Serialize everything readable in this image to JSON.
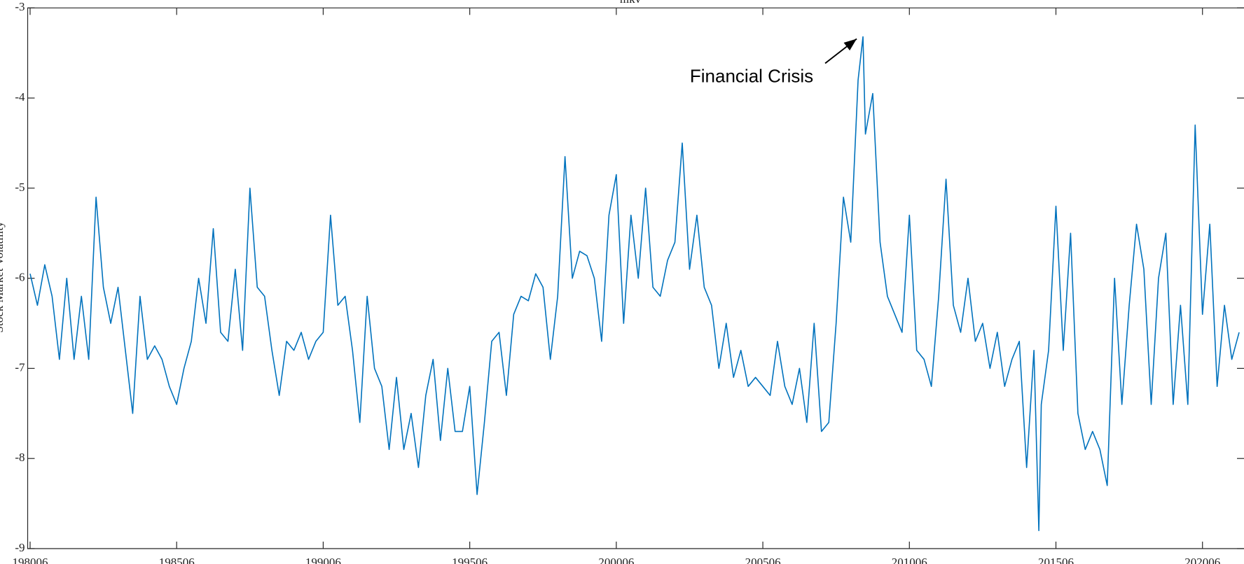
{
  "chart_data": {
    "type": "line",
    "title": "mkv",
    "ylabel": "Stock Market Volatility",
    "annotations": [
      {
        "text": "Financial Crisis"
      }
    ],
    "xlim": [
      "1980-05",
      "2021-11"
    ],
    "xticks": [
      {
        "value": "1980-06",
        "label": "198006"
      },
      {
        "value": "1985-06",
        "label": "198506"
      },
      {
        "value": "1990-06",
        "label": "199006"
      },
      {
        "value": "1995-06",
        "label": "199506"
      },
      {
        "value": "2000-06",
        "label": "200006"
      },
      {
        "value": "2005-06",
        "label": "200506"
      },
      {
        "value": "2010-06",
        "label": "201006"
      },
      {
        "value": "2015-06",
        "label": "201506"
      },
      {
        "value": "2020-06",
        "label": "202006"
      }
    ],
    "ylim": [
      -9,
      -3
    ],
    "yticks": [
      -9,
      -8,
      -7,
      -6,
      -5,
      -4,
      -3
    ],
    "grid": false,
    "x": [
      "1980-06",
      "1980-09",
      "1980-12",
      "1981-03",
      "1981-06",
      "1981-09",
      "1981-12",
      "1982-03",
      "1982-06",
      "1982-09",
      "1982-12",
      "1983-03",
      "1983-06",
      "1983-09",
      "1983-12",
      "1984-03",
      "1984-06",
      "1984-09",
      "1984-12",
      "1985-03",
      "1985-06",
      "1985-09",
      "1985-12",
      "1986-03",
      "1986-06",
      "1986-09",
      "1986-12",
      "1987-03",
      "1987-06",
      "1987-09",
      "1987-12",
      "1988-03",
      "1988-06",
      "1988-09",
      "1988-12",
      "1989-03",
      "1989-06",
      "1989-09",
      "1989-12",
      "1990-03",
      "1990-06",
      "1990-09",
      "1990-12",
      "1991-03",
      "1991-06",
      "1991-09",
      "1991-12",
      "1992-03",
      "1992-06",
      "1992-09",
      "1992-12",
      "1993-03",
      "1993-06",
      "1993-09",
      "1993-12",
      "1994-03",
      "1994-06",
      "1994-09",
      "1994-12",
      "1995-03",
      "1995-06",
      "1995-09",
      "1995-12",
      "1996-03",
      "1996-06",
      "1996-09",
      "1996-12",
      "1997-03",
      "1997-06",
      "1997-09",
      "1997-12",
      "1998-03",
      "1998-06",
      "1998-09",
      "1998-12",
      "1999-03",
      "1999-06",
      "1999-09",
      "1999-12",
      "2000-03",
      "2000-06",
      "2000-09",
      "2000-12",
      "2001-03",
      "2001-06",
      "2001-09",
      "2001-12",
      "2002-03",
      "2002-06",
      "2002-09",
      "2002-12",
      "2003-03",
      "2003-06",
      "2003-09",
      "2003-12",
      "2004-03",
      "2004-06",
      "2004-09",
      "2004-12",
      "2005-03",
      "2005-06",
      "2005-09",
      "2005-12",
      "2006-03",
      "2006-06",
      "2006-09",
      "2006-12",
      "2007-03",
      "2007-06",
      "2007-09",
      "2007-12",
      "2008-03",
      "2008-06",
      "2008-09",
      "2008-11",
      "2008-12",
      "2009-03",
      "2009-06",
      "2009-09",
      "2009-12",
      "2010-03",
      "2010-06",
      "2010-09",
      "2010-12",
      "2011-03",
      "2011-06",
      "2011-09",
      "2011-12",
      "2012-03",
      "2012-06",
      "2012-09",
      "2012-12",
      "2013-03",
      "2013-06",
      "2013-09",
      "2013-12",
      "2014-03",
      "2014-06",
      "2014-09",
      "2014-11",
      "2014-12",
      "2015-03",
      "2015-06",
      "2015-09",
      "2015-12",
      "2016-03",
      "2016-06",
      "2016-09",
      "2016-12",
      "2017-03",
      "2017-06",
      "2017-09",
      "2017-12",
      "2018-03",
      "2018-06",
      "2018-09",
      "2018-12",
      "2019-03",
      "2019-06",
      "2019-09",
      "2019-12",
      "2020-03",
      "2020-06",
      "2020-09",
      "2020-12",
      "2021-03",
      "2021-06",
      "2021-09"
    ],
    "series": [
      {
        "name": "mkv",
        "color": "#0072bd",
        "values": [
          -5.95,
          -6.3,
          -5.85,
          -6.2,
          -6.9,
          -6.0,
          -6.9,
          -6.2,
          -6.9,
          -5.1,
          -6.1,
          -6.5,
          -6.1,
          -6.8,
          -7.5,
          -6.2,
          -6.9,
          -6.75,
          -6.9,
          -7.2,
          -7.4,
          -7.0,
          -6.7,
          -6.0,
          -6.5,
          -5.45,
          -6.6,
          -6.7,
          -5.9,
          -6.8,
          -5.0,
          -6.1,
          -6.2,
          -6.8,
          -7.3,
          -6.7,
          -6.8,
          -6.6,
          -6.9,
          -6.7,
          -6.6,
          -5.3,
          -6.3,
          -6.2,
          -6.8,
          -7.6,
          -6.2,
          -7.0,
          -7.2,
          -7.9,
          -7.1,
          -7.9,
          -7.5,
          -8.1,
          -7.3,
          -6.9,
          -7.8,
          -7.0,
          -7.7,
          -7.7,
          -7.2,
          -8.4,
          -7.6,
          -6.7,
          -6.6,
          -7.3,
          -6.4,
          -6.2,
          -6.25,
          -5.95,
          -6.1,
          -6.9,
          -6.2,
          -4.65,
          -6.0,
          -5.7,
          -5.75,
          -6.0,
          -6.7,
          -5.3,
          -4.85,
          -6.5,
          -5.3,
          -6.0,
          -5.0,
          -6.1,
          -6.2,
          -5.8,
          -5.6,
          -4.5,
          -5.9,
          -5.3,
          -6.1,
          -6.3,
          -7.0,
          -6.5,
          -7.1,
          -6.8,
          -7.2,
          -7.1,
          -7.2,
          -7.3,
          -6.7,
          -7.2,
          -7.4,
          -7.0,
          -7.6,
          -6.5,
          -7.7,
          -7.6,
          -6.5,
          -5.1,
          -5.6,
          -3.8,
          -3.32,
          -4.4,
          -3.95,
          -5.6,
          -6.2,
          -6.4,
          -6.6,
          -5.3,
          -6.8,
          -6.9,
          -7.2,
          -6.2,
          -4.9,
          -6.3,
          -6.6,
          -6.0,
          -6.7,
          -6.5,
          -7.0,
          -6.6,
          -7.2,
          -6.9,
          -6.7,
          -8.1,
          -6.8,
          -8.8,
          -7.4,
          -6.8,
          -5.2,
          -6.8,
          -5.5,
          -7.5,
          -7.9,
          -7.7,
          -7.9,
          -8.3,
          -6.0,
          -7.4,
          -6.3,
          -5.4,
          -5.9,
          -7.4,
          -6.0,
          -5.5,
          -7.4,
          -6.3,
          -7.4,
          -4.3,
          -6.4,
          -5.4,
          -7.2,
          -6.3,
          -6.9,
          -6.6
        ]
      }
    ]
  }
}
